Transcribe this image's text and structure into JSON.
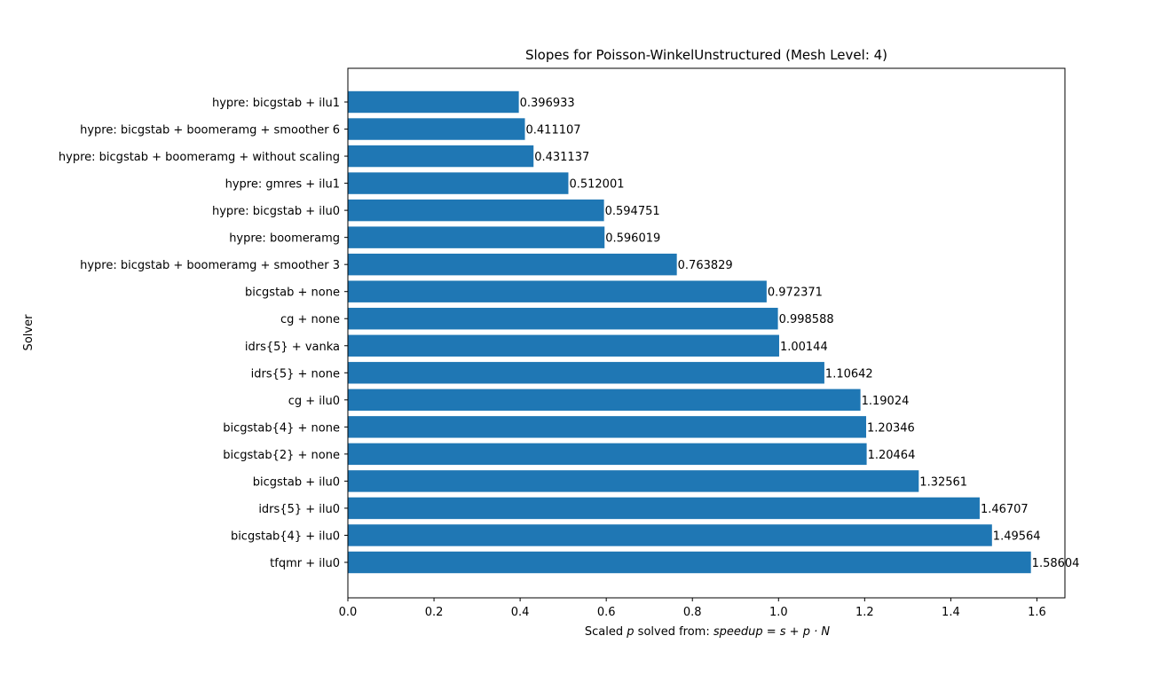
{
  "chart_data": {
    "type": "bar",
    "orientation": "horizontal",
    "title": "Slopes for Poisson-WinkelUnstructured (Mesh Level: 4)",
    "xlabel": {
      "prefix": "Scaled ",
      "var": "p",
      "middle": " solved from: ",
      "formula": "speedup = s + p · N"
    },
    "ylabel": "Solver",
    "xlim": [
      0,
      1.665
    ],
    "xticks": [
      0,
      0.2,
      0.4,
      0.6,
      0.8,
      1.0,
      1.2,
      1.4,
      1.6
    ],
    "xtick_labels": [
      "0.0",
      "0.2",
      "0.4",
      "0.6",
      "0.8",
      "1.0",
      "1.2",
      "1.4",
      "1.6"
    ],
    "grid": false,
    "bar_color": "#1f77b4",
    "categories": [
      "hypre: bicgstab + ilu1",
      "hypre: bicgstab + boomeramg + smoother 6",
      "hypre: bicgstab + boomeramg + without scaling",
      "hypre: gmres + ilu1",
      "hypre: bicgstab + ilu0",
      "hypre: boomeramg",
      "hypre: bicgstab + boomeramg + smoother 3",
      "bicgstab + none",
      "cg + none",
      "idrs{5} + vanka",
      "idrs{5} + none",
      "cg + ilu0",
      "bicgstab{4} + none",
      "bicgstab{2} + none",
      "bicgstab + ilu0",
      "idrs{5} + ilu0",
      "bicgstab{4} + ilu0",
      "tfqmr + ilu0"
    ],
    "values": [
      0.396933,
      0.411107,
      0.431137,
      0.512001,
      0.594751,
      0.596019,
      0.763829,
      0.972371,
      0.998588,
      1.00144,
      1.10642,
      1.19024,
      1.20346,
      1.20464,
      1.32561,
      1.46707,
      1.49564,
      1.58604
    ],
    "value_labels": [
      "0.396933",
      "0.411107",
      "0.431137",
      "0.512001",
      "0.594751",
      "0.596019",
      "0.763829",
      "0.972371",
      "0.998588",
      "1.00144",
      "1.10642",
      "1.19024",
      "1.20346",
      "1.20464",
      "1.32561",
      "1.46707",
      "1.49564",
      "1.58604"
    ]
  }
}
